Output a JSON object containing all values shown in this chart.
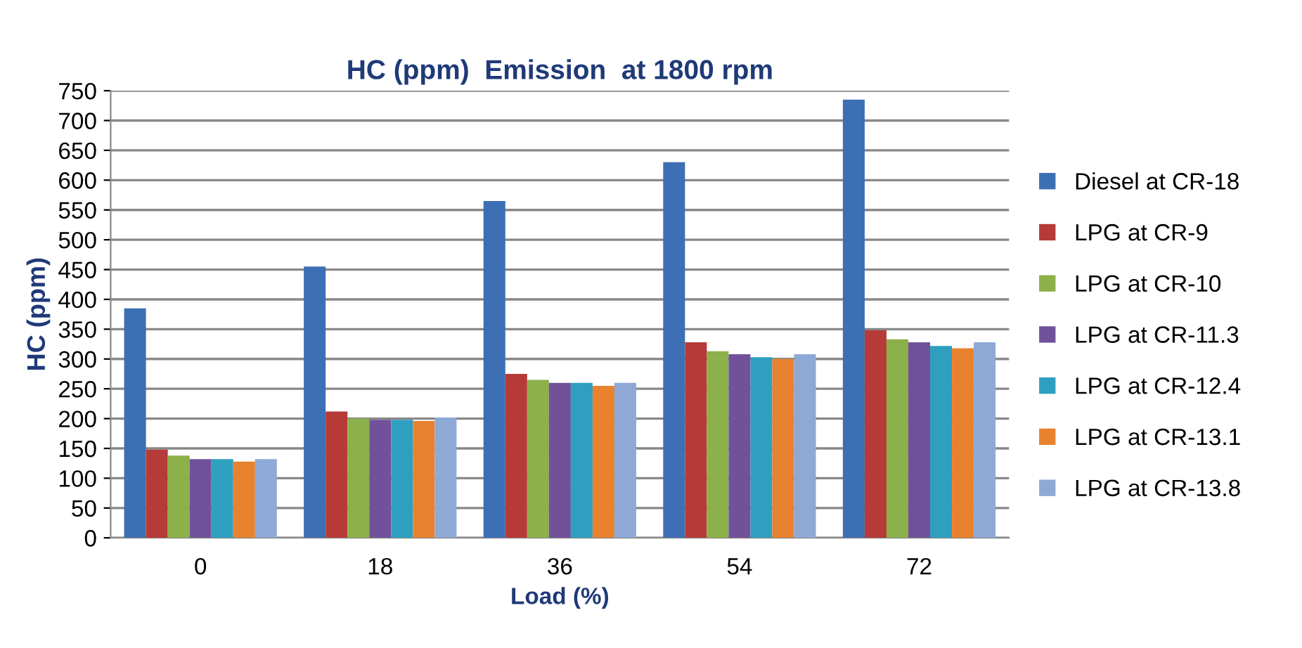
{
  "chart_data": {
    "type": "bar",
    "title": "HC (ppm)  Emission  at 1800 rpm",
    "xlabel": "Load (%)",
    "ylabel": "HC (ppm)",
    "categories": [
      "0",
      "18",
      "36",
      "54",
      "72"
    ],
    "series": [
      {
        "name": "Diesel at CR-18",
        "color": "#3c6fb4",
        "values": [
          385,
          455,
          565,
          630,
          735
        ]
      },
      {
        "name": "LPG at CR-9",
        "color": "#b63a38",
        "values": [
          148,
          212,
          275,
          328,
          348
        ]
      },
      {
        "name": "LPG at CR-10",
        "color": "#8cb04a",
        "values": [
          138,
          200,
          265,
          313,
          333
        ]
      },
      {
        "name": "LPG at CR-11.3",
        "color": "#71529a",
        "values": [
          132,
          198,
          260,
          308,
          328
        ]
      },
      {
        "name": "LPG at CR-12.4",
        "color": "#2f9fbf",
        "values": [
          132,
          198,
          260,
          303,
          322
        ]
      },
      {
        "name": "LPG at CR-13.1",
        "color": "#e8822e",
        "values": [
          128,
          196,
          255,
          300,
          318
        ]
      },
      {
        "name": "LPG at CR-13.8",
        "color": "#8ea9d6",
        "values": [
          132,
          202,
          260,
          308,
          328
        ]
      }
    ],
    "ylim": [
      0,
      750
    ],
    "yticks": [
      0,
      50,
      100,
      150,
      200,
      250,
      300,
      350,
      400,
      450,
      500,
      550,
      600,
      650,
      700,
      750
    ],
    "grid": "y",
    "legend": "right"
  }
}
